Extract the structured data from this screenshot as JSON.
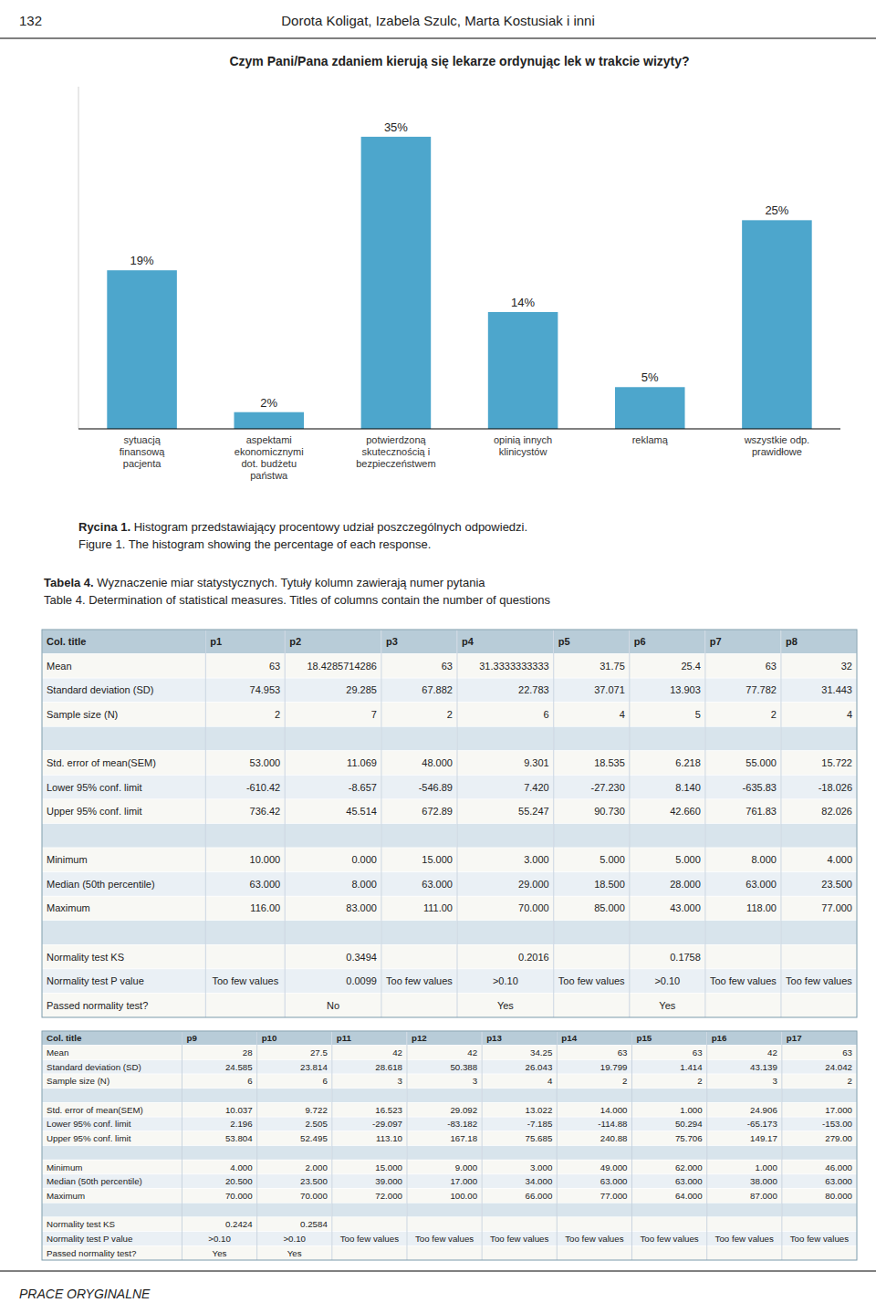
{
  "page": {
    "header_left": "132",
    "header_right": "Dorota Koligat, Izabela Szulc, Marta Kostusiak i inni",
    "figure_caption_bold": "Rycina 1.",
    "figure_caption_rest": " Histogram przedstawiający procentowy udział poszczególnych odpowiedzi.",
    "figure_caption_line2": "Figure 1. The histogram showing the percentage of each response.",
    "table_caption_bold": "Tabela 4.",
    "table_caption_rest": " Wyznaczenie miar statystycznych. Tytuły kolumn zawierają numer pytania",
    "table_caption_line2": "Table 4. Determination of statistical measures. Titles of columns contain the number of questions",
    "footer_text": "PRACE ORYGINALNE"
  },
  "chart_data": {
    "type": "bar",
    "title": "Czym Pani/Pana zdaniem kierują się lekarze ordynując lek w trakcie wizyty?",
    "categories": [
      "sytuacją\nfinansową\npacjenta",
      "aspektami\nekonomicznymi\ndot. budżetu\npaństwa",
      "potwierdzoną\nskutecznością i\nbezpieczeństwem",
      "opinią innych\nklinicystów",
      "reklamą",
      "wszystkie odp.\nprawidłowe"
    ],
    "values": [
      19,
      2,
      35,
      14,
      5,
      25
    ],
    "value_labels": [
      "19%",
      "2%",
      "35%",
      "14%",
      "5%",
      "25%"
    ],
    "color": "#4da6cc",
    "ylim": [
      0,
      41
    ],
    "grid": false,
    "data_labels": true,
    "tick_labels": "x"
  },
  "tables": [
    {
      "headers": [
        "Col. title",
        "p1",
        "p2",
        "p3",
        "p4",
        "p5",
        "p6",
        "p7",
        "p8"
      ],
      "rows": [
        [
          "Mean",
          "63",
          "18.4285714286",
          "63",
          "31.3333333333",
          "31.75",
          "25.4",
          "63",
          "32"
        ],
        [
          "Standard deviation (SD)",
          "74.953",
          "29.285",
          "67.882",
          "22.783",
          "37.071",
          "13.903",
          "77.782",
          "31.443"
        ],
        [
          "Sample size (N)",
          "2",
          "7",
          "2",
          "6",
          "4",
          "5",
          "2",
          "4"
        ],
        [
          null,
          null,
          null,
          null,
          null,
          null,
          null,
          null,
          null
        ],
        [
          "Std. error of mean(SEM)",
          "53.000",
          "11.069",
          "48.000",
          "9.301",
          "18.535",
          "6.218",
          "55.000",
          "15.722"
        ],
        [
          "Lower 95% conf. limit",
          "-610.42",
          "-8.657",
          "-546.89",
          "7.420",
          "-27.230",
          "8.140",
          "-635.83",
          "-18.026"
        ],
        [
          "Upper 95% conf. limit",
          "736.42",
          "45.514",
          "672.89",
          "55.247",
          "90.730",
          "42.660",
          "761.83",
          "82.026"
        ],
        [
          null,
          null,
          null,
          null,
          null,
          null,
          null,
          null,
          null
        ],
        [
          "Minimum",
          "10.000",
          "0.000",
          "15.000",
          "3.000",
          "5.000",
          "5.000",
          "8.000",
          "4.000"
        ],
        [
          "Median (50th percentile)",
          "63.000",
          "8.000",
          "63.000",
          "29.000",
          "18.500",
          "28.000",
          "63.000",
          "23.500"
        ],
        [
          "Maximum",
          "116.00",
          "83.000",
          "111.00",
          "70.000",
          "85.000",
          "43.000",
          "118.00",
          "77.000"
        ],
        [
          null,
          null,
          null,
          null,
          null,
          null,
          null,
          null,
          null
        ],
        [
          "Normality test KS",
          null,
          "0.3494",
          null,
          "0.2016",
          null,
          "0.1758",
          null,
          null
        ],
        [
          "Normality test P value",
          "Too few values",
          "0.0099",
          "Too few values",
          ">0.10",
          "Too few values",
          ">0.10",
          "Too few values",
          "Too few values"
        ],
        [
          "Passed normality test?",
          null,
          "No",
          null,
          "Yes",
          null,
          "Yes",
          null,
          null
        ]
      ]
    },
    {
      "headers": [
        "Col. title",
        "p9",
        "p10",
        "p11",
        "p12",
        "p13",
        "p14",
        "p15",
        "p16",
        "p17"
      ],
      "rows": [
        [
          "Mean",
          "28",
          "27.5",
          "42",
          "42",
          "34.25",
          "63",
          "63",
          "42",
          "63"
        ],
        [
          "Standard deviation (SD)",
          "24.585",
          "23.814",
          "28.618",
          "50.388",
          "26.043",
          "19.799",
          "1.414",
          "43.139",
          "24.042"
        ],
        [
          "Sample size (N)",
          "6",
          "6",
          "3",
          "3",
          "4",
          "2",
          "2",
          "3",
          "2"
        ],
        [
          null,
          null,
          null,
          null,
          null,
          null,
          null,
          null,
          null,
          null
        ],
        [
          "Std. error of mean(SEM)",
          "10.037",
          "9.722",
          "16.523",
          "29.092",
          "13.022",
          "14.000",
          "1.000",
          "24.906",
          "17.000"
        ],
        [
          "Lower 95% conf. limit",
          "2.196",
          "2.505",
          "-29.097",
          "-83.182",
          "-7.185",
          "-114.88",
          "50.294",
          "-65.173",
          "-153.00"
        ],
        [
          "Upper 95% conf. limit",
          "53.804",
          "52.495",
          "113.10",
          "167.18",
          "75.685",
          "240.88",
          "75.706",
          "149.17",
          "279.00"
        ],
        [
          null,
          null,
          null,
          null,
          null,
          null,
          null,
          null,
          null,
          null
        ],
        [
          "Minimum",
          "4.000",
          "2.000",
          "15.000",
          "9.000",
          "3.000",
          "49.000",
          "62.000",
          "1.000",
          "46.000"
        ],
        [
          "Median (50th percentile)",
          "20.500",
          "23.500",
          "39.000",
          "17.000",
          "34.000",
          "63.000",
          "63.000",
          "38.000",
          "63.000"
        ],
        [
          "Maximum",
          "70.000",
          "70.000",
          "72.000",
          "100.00",
          "66.000",
          "77.000",
          "64.000",
          "87.000",
          "80.000"
        ],
        [
          null,
          null,
          null,
          null,
          null,
          null,
          null,
          null,
          null,
          null
        ],
        [
          "Normality test KS",
          "0.2424",
          "0.2584",
          null,
          null,
          null,
          null,
          null,
          null,
          null
        ],
        [
          "Normality test P value",
          ">0.10",
          ">0.10",
          "Too few values",
          "Too few values",
          "Too few values",
          "Too few values",
          "Too few values",
          "Too few values",
          "Too few values"
        ],
        [
          "Passed normality test?",
          "Yes",
          "Yes",
          null,
          null,
          null,
          null,
          null,
          null,
          null
        ]
      ]
    }
  ]
}
